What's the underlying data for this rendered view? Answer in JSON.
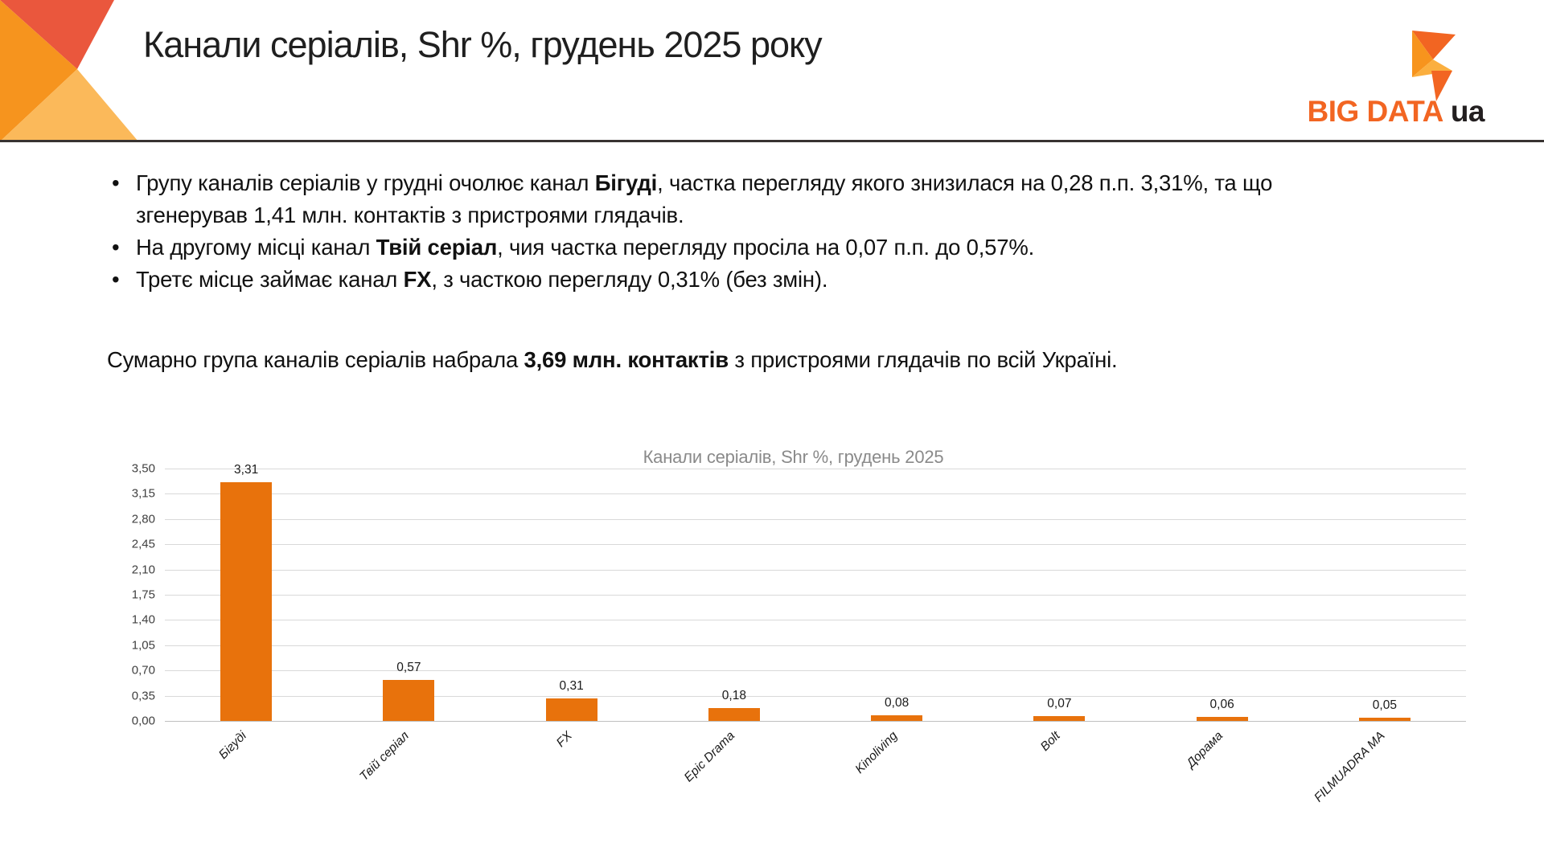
{
  "slide": {
    "title": "Канали серіалів, Shr %, грудень 2025 року",
    "logo": {
      "brand": "BIG DATA",
      "suffix": "ua"
    },
    "bullets": [
      {
        "pre": "Групу каналів серіалів у грудні очолює канал ",
        "bold": "Бігуді",
        "post": ", частка перегляду якого знизилася на 0,28 п.п. 3,31%, та що згенерував 1,41  млн. контактів з пристроями глядачів."
      },
      {
        "pre": "На другому місці канал ",
        "bold": "Твій серіал",
        "post": ", чия частка перегляду просіла на 0,07 п.п. до 0,57%."
      },
      {
        "pre": "Третє місце займає канал ",
        "bold": "FX",
        "post": ", з часткою перегляду 0,31% (без змін)."
      }
    ],
    "summary": {
      "pre": "Сумарно група каналів серіалів набрала ",
      "bold": "3,69 млн. контактів",
      "post": " з пристроями глядачів по всій Україні."
    }
  },
  "chart_data": {
    "type": "bar",
    "title": "Канали серіалів, Shr %, грудень 2025",
    "categories": [
      "Бігуді",
      "Твій серіал",
      "FX",
      "Epic Drama",
      "Kinoliving",
      "Bolt",
      "Дорама",
      "FILMUADRA MA"
    ],
    "values": [
      3.31,
      0.57,
      0.31,
      0.18,
      0.08,
      0.07,
      0.06,
      0.05
    ],
    "value_labels": [
      "3,31",
      "0,57",
      "0,31",
      "0,18",
      "0,08",
      "0,07",
      "0,06",
      "0,05"
    ],
    "y_ticks": [
      "3,50",
      "3,15",
      "2,80",
      "2,45",
      "2,10",
      "1,75",
      "1,40",
      "1,05",
      "0,70",
      "0,35",
      "0,00"
    ],
    "ylim": [
      0,
      3.5
    ],
    "xlabel": "",
    "ylabel": "",
    "grid": true,
    "legend": "none",
    "bar_color": "#E8720C"
  },
  "colors": {
    "accent_orange": "#F26522",
    "bar_orange": "#E8720C",
    "decoration_red": "#EA573D",
    "decoration_orange": "#F6941E",
    "decoration_amber": "#FBB95A",
    "divider_dark": "#383331",
    "chart_title_gray": "#8A8A8A"
  }
}
